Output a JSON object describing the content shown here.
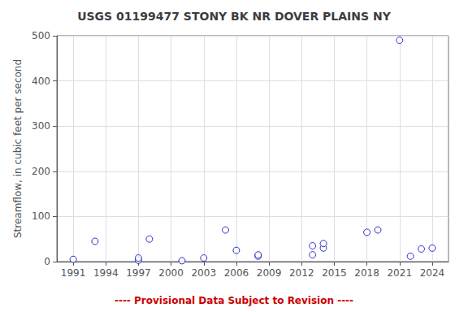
{
  "chart_data": {
    "type": "scatter",
    "title": "USGS 01199477 STONY BK NR DOVER PLAINS NY",
    "ylabel": "Streamflow, in cubic feet per second",
    "annotation": {
      "text": "---- Provisional Data Subject to Revision ----",
      "color": "#cc0000"
    },
    "x": [
      1991,
      1993,
      1997,
      1997,
      1998,
      2001,
      2003,
      2005,
      2006,
      2008,
      2008,
      2013,
      2013,
      2014,
      2014,
      2018,
      2019,
      2021,
      2022,
      2023,
      2024
    ],
    "values": [
      5,
      45,
      3,
      8,
      50,
      2,
      8,
      70,
      25,
      12,
      15,
      15,
      35,
      30,
      40,
      65,
      70,
      490,
      12,
      28,
      30
    ],
    "color": "#0000bb",
    "marker": "open circle",
    "xlim": [
      1989.5,
      2025.5
    ],
    "ylim": [
      0,
      500
    ],
    "xticks": [
      1991,
      1994,
      1997,
      2000,
      2003,
      2006,
      2009,
      2012,
      2015,
      2018,
      2021,
      2024
    ],
    "yticks": [
      0,
      100,
      200,
      300,
      400,
      500
    ],
    "grid": true
  }
}
